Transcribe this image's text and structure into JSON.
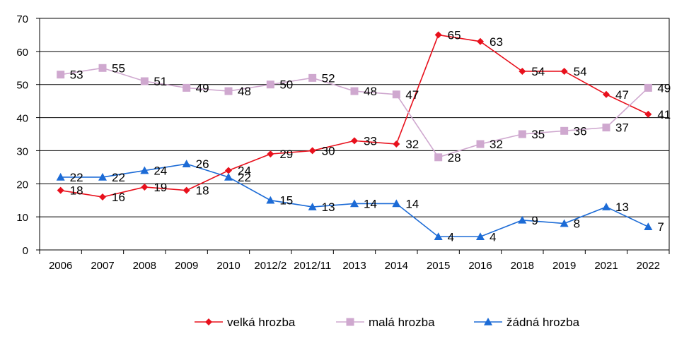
{
  "chart_data": {
    "type": "line",
    "title": "",
    "xlabel": "",
    "ylabel": "",
    "ylim": [
      0,
      70
    ],
    "yticks": [
      0,
      10,
      20,
      30,
      40,
      50,
      60,
      70
    ],
    "grid": "horizontal",
    "legend_position": "bottom",
    "categories": [
      "2006",
      "2007",
      "2008",
      "2009",
      "2010",
      "2012/2",
      "2012/11",
      "2013",
      "2014",
      "2015",
      "2016",
      "2018",
      "2019",
      "2021",
      "2022"
    ],
    "series": [
      {
        "name": "velká hrozba",
        "color": "#e8101c",
        "marker": "diamond",
        "values": [
          18,
          16,
          19,
          18,
          24,
          29,
          30,
          33,
          32,
          65,
          63,
          54,
          54,
          47,
          41
        ]
      },
      {
        "name": "malá hrozba",
        "color": "#cfa8cf",
        "marker": "square",
        "values": [
          53,
          55,
          51,
          49,
          48,
          50,
          52,
          48,
          47,
          28,
          32,
          35,
          36,
          37,
          49
        ]
      },
      {
        "name": "žádná hrozba",
        "color": "#1c6bd6",
        "marker": "triangle",
        "values": [
          22,
          22,
          24,
          26,
          22,
          15,
          13,
          14,
          14,
          4,
          4,
          9,
          8,
          13,
          7
        ]
      }
    ]
  }
}
